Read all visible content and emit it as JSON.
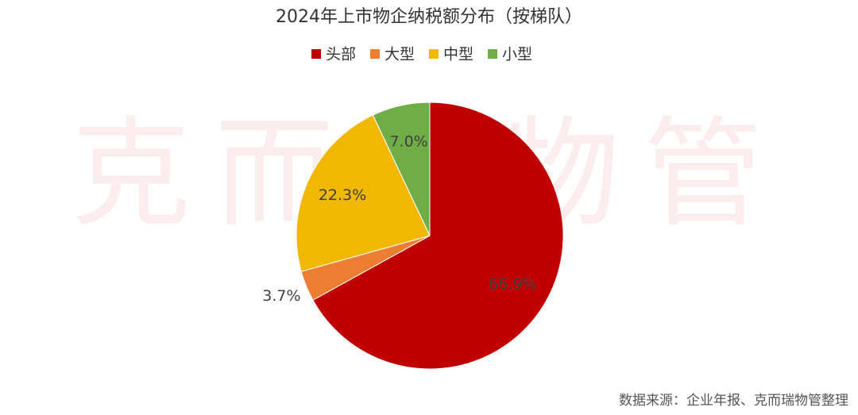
{
  "chart_data": {
    "type": "pie",
    "title": "2024年上市物企纳税额分布（按梯队）",
    "categories": [
      "头部",
      "大型",
      "中型",
      "小型"
    ],
    "values": [
      66.9,
      3.7,
      22.3,
      7.0
    ],
    "value_labels": [
      "66.9%",
      "3.7%",
      "22.3%",
      "7.0%"
    ],
    "colors": [
      "#c00000",
      "#ed7d31",
      "#f2b700",
      "#70ad47"
    ],
    "legend": "top",
    "watermark": "克而瑞物管",
    "source": "数据来源：企业年报、克而瑞物管整理"
  }
}
